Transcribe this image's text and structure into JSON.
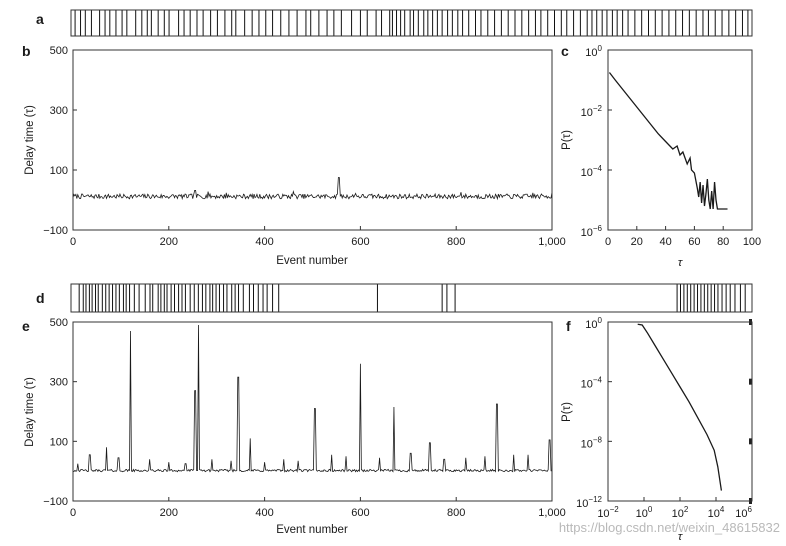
{
  "chart_data": [
    {
      "panel": "a",
      "type": "event_strip",
      "event_positions": [
        0.006,
        0.014,
        0.021,
        0.03,
        0.042,
        0.05,
        0.057,
        0.066,
        0.075,
        0.082,
        0.095,
        0.104,
        0.112,
        0.118,
        0.128,
        0.137,
        0.144,
        0.158,
        0.166,
        0.175,
        0.185,
        0.194,
        0.205,
        0.215,
        0.226,
        0.236,
        0.242,
        0.255,
        0.266,
        0.276,
        0.286,
        0.296,
        0.308,
        0.32,
        0.332,
        0.345,
        0.352,
        0.364,
        0.376,
        0.386,
        0.397,
        0.412,
        0.425,
        0.435,
        0.448,
        0.456,
        0.468,
        0.472,
        0.478,
        0.484,
        0.49,
        0.498,
        0.503,
        0.51,
        0.518,
        0.524,
        0.531,
        0.538,
        0.545,
        0.553,
        0.56,
        0.568,
        0.575,
        0.584,
        0.594,
        0.602,
        0.612,
        0.622,
        0.632,
        0.642,
        0.652,
        0.662,
        0.672,
        0.682,
        0.69,
        0.7,
        0.71,
        0.72,
        0.728,
        0.738,
        0.748,
        0.758,
        0.765,
        0.772,
        0.78,
        0.787,
        0.795,
        0.802,
        0.81,
        0.818,
        0.828,
        0.838,
        0.848,
        0.858,
        0.868,
        0.878,
        0.888,
        0.898,
        0.908,
        0.918,
        0.928,
        0.936,
        0.946,
        0.956,
        0.966,
        0.976,
        0.986,
        0.994
      ]
    },
    {
      "panel": "b",
      "type": "line",
      "xlabel": "Event number",
      "ylabel": "Delay time (τ)",
      "xlim": [
        0,
        1000
      ],
      "ylim": [
        -100,
        500
      ],
      "xticks": [
        0,
        200,
        400,
        600,
        800,
        1000
      ],
      "xtick_labels": [
        "0",
        "200",
        "400",
        "600",
        "800",
        "1,000"
      ],
      "yticks": [
        -100,
        100,
        300,
        500
      ],
      "ytick_labels": [
        "−100",
        "100",
        "300",
        "500"
      ],
      "baseline": 12,
      "noise_amplitude": 8,
      "peaks": [
        [
          255,
          32
        ],
        [
          282,
          28
        ],
        [
          320,
          24
        ],
        [
          460,
          28
        ],
        [
          555,
          75
        ],
        [
          590,
          22
        ],
        [
          810,
          26
        ],
        [
          960,
          24
        ],
        [
          1000,
          26
        ]
      ]
    },
    {
      "panel": "c",
      "type": "line",
      "scale": "log-y",
      "xlabel": "τ",
      "ylabel": "P(τ)",
      "xlim": [
        0,
        100
      ],
      "ylim_exp": [
        -6,
        0
      ],
      "xticks": [
        0,
        20,
        40,
        60,
        80,
        100
      ],
      "xtick_labels": [
        "0",
        "20",
        "40",
        "60",
        "80",
        "100"
      ],
      "yticks_exp": [
        0,
        -2,
        -4,
        -6
      ],
      "ytick_base": "10",
      "ytick_exponents": [
        "0",
        "−2",
        "−4",
        "−6"
      ],
      "x": [
        1,
        5,
        10,
        15,
        20,
        25,
        30,
        35,
        40,
        45,
        48,
        50,
        52,
        55,
        57,
        58,
        60,
        62,
        63,
        64,
        65,
        66,
        67,
        68,
        69,
        70,
        71,
        72,
        73,
        74,
        75,
        76,
        77,
        80,
        83
      ],
      "log10_y": [
        -0.75,
        -1.0,
        -1.3,
        -1.6,
        -1.9,
        -2.2,
        -2.5,
        -2.8,
        -3.05,
        -3.3,
        -3.2,
        -3.5,
        -3.4,
        -3.8,
        -3.6,
        -4.0,
        -4.1,
        -4.6,
        -4.9,
        -4.4,
        -5.1,
        -4.5,
        -5.2,
        -4.8,
        -4.3,
        -5.0,
        -5.3,
        -4.7,
        -5.3,
        -4.4,
        -5.0,
        -5.3,
        -5.3,
        -5.3,
        -5.3
      ]
    },
    {
      "panel": "d",
      "type": "event_strip",
      "event_positions": [
        0.012,
        0.018,
        0.022,
        0.027,
        0.031,
        0.036,
        0.04,
        0.046,
        0.051,
        0.056,
        0.061,
        0.066,
        0.071,
        0.077,
        0.081,
        0.086,
        0.093,
        0.1,
        0.109,
        0.116,
        0.12,
        0.128,
        0.132,
        0.137,
        0.141,
        0.147,
        0.152,
        0.158,
        0.163,
        0.168,
        0.175,
        0.181,
        0.187,
        0.193,
        0.198,
        0.204,
        0.208,
        0.213,
        0.218,
        0.224,
        0.229,
        0.236,
        0.241,
        0.246,
        0.253,
        0.262,
        0.268,
        0.275,
        0.282,
        0.288,
        0.296,
        0.305,
        0.45,
        0.545,
        0.552,
        0.564,
        0.89,
        0.895,
        0.9,
        0.905,
        0.91,
        0.915,
        0.92,
        0.925,
        0.93,
        0.935,
        0.94,
        0.945,
        0.95,
        0.956,
        0.962,
        0.968,
        0.975,
        0.983,
        0.99
      ]
    },
    {
      "panel": "e",
      "type": "line",
      "xlabel": "Event number",
      "ylabel": "Delay time (τ)",
      "xlim": [
        0,
        1000
      ],
      "ylim": [
        -100,
        500
      ],
      "xticks": [
        0,
        200,
        400,
        600,
        800,
        1000
      ],
      "xtick_labels": [
        "0",
        "200",
        "400",
        "600",
        "800",
        "1,000"
      ],
      "yticks": [
        -100,
        100,
        300,
        500
      ],
      "ytick_labels": [
        "−100",
        "100",
        "300",
        "500"
      ],
      "baseline": 2,
      "noise_amplitude": 4,
      "peaks": [
        [
          10,
          25
        ],
        [
          35,
          55
        ],
        [
          70,
          80
        ],
        [
          95,
          45
        ],
        [
          120,
          470
        ],
        [
          160,
          40
        ],
        [
          200,
          30
        ],
        [
          235,
          25
        ],
        [
          255,
          270
        ],
        [
          262,
          490
        ],
        [
          290,
          40
        ],
        [
          330,
          35
        ],
        [
          345,
          315
        ],
        [
          370,
          110
        ],
        [
          400,
          30
        ],
        [
          440,
          40
        ],
        [
          470,
          35
        ],
        [
          505,
          210
        ],
        [
          540,
          55
        ],
        [
          570,
          50
        ],
        [
          600,
          360
        ],
        [
          640,
          45
        ],
        [
          670,
          215
        ],
        [
          705,
          60
        ],
        [
          745,
          95
        ],
        [
          775,
          40
        ],
        [
          820,
          45
        ],
        [
          860,
          50
        ],
        [
          885,
          225
        ],
        [
          920,
          55
        ],
        [
          950,
          55
        ],
        [
          995,
          105
        ]
      ]
    },
    {
      "panel": "f",
      "type": "line",
      "scale": "log-log",
      "xlabel": "τ",
      "ylabel": "P(τ)",
      "xlim_exp": [
        -2,
        6
      ],
      "ylim_exp": [
        -12,
        0
      ],
      "xticks_exp": [
        -2,
        0,
        2,
        4,
        6
      ],
      "xtick_base": "10",
      "xtick_exponents": [
        "−2",
        "0",
        "2",
        "4",
        "6"
      ],
      "yticks_exp": [
        0,
        -4,
        -8,
        -12
      ],
      "ytick_base": "10",
      "ytick_exponents": [
        "0",
        "−4",
        "−8",
        "−12"
      ],
      "log10_x": [
        -0.35,
        -0.1,
        0.2,
        0.6,
        1.0,
        1.5,
        2.0,
        2.5,
        3.0,
        3.5,
        3.9,
        4.1,
        4.3
      ],
      "log10_y": [
        -0.15,
        -0.2,
        -0.75,
        -1.55,
        -2.35,
        -3.35,
        -4.35,
        -5.35,
        -6.45,
        -7.55,
        -8.6,
        -9.7,
        -11.3
      ]
    }
  ],
  "watermark": "https://blog.csdn.net/weixin_48615832"
}
